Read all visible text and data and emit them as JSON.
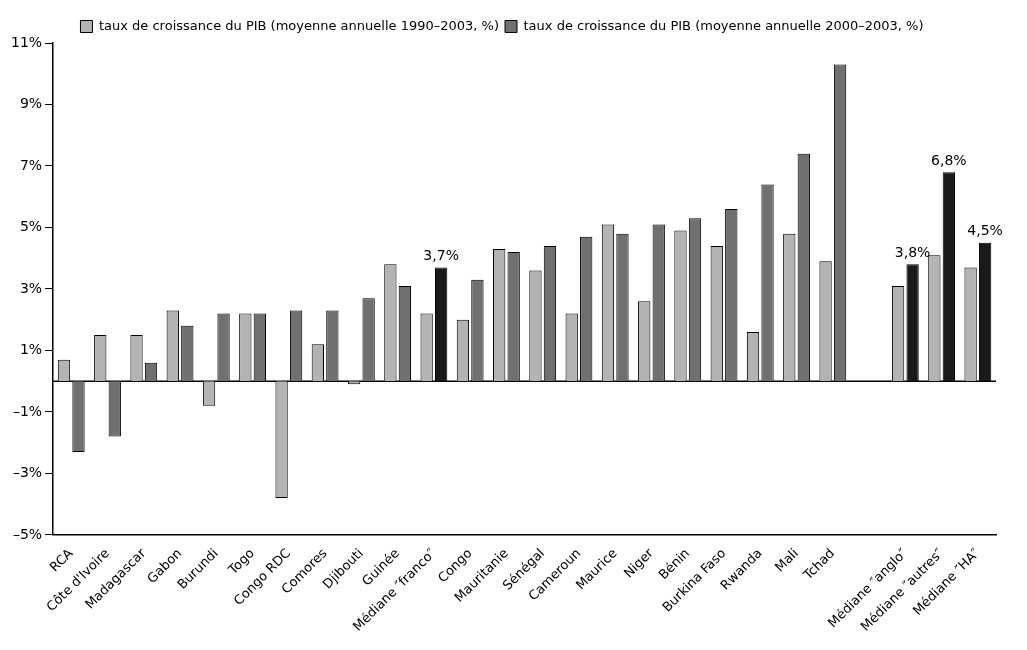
{
  "chart_data": {
    "type": "bar",
    "categories": [
      "RCA",
      "Côte d'Ivoire",
      "Madagascar",
      "Gabon",
      "Burundi",
      "Togo",
      "Congo RDC",
      "Comores",
      "Djibouti",
      "Guinée",
      "Médiane ″franco″",
      "Congo",
      "Mauritanie",
      "Sénégal",
      "Cameroun",
      "Maurice",
      "Niger",
      "Bénin",
      "Burkina Faso",
      "Rwanda",
      "Mali",
      "Tchad",
      null,
      "Médiane ″anglo″",
      "Médiane ″autres″",
      "Médiane ″HA″"
    ],
    "series": [
      {
        "name": "taux de croissance du PIB (moyenne annuelle 1990–2003, %)",
        "color": "#b3b3b3",
        "values": [
          0.7,
          1.5,
          1.5,
          2.3,
          -0.8,
          2.2,
          -3.8,
          1.2,
          -0.1,
          3.8,
          2.2,
          2.0,
          4.3,
          3.6,
          2.2,
          5.1,
          2.6,
          4.9,
          4.4,
          1.6,
          4.8,
          3.9,
          null,
          3.1,
          4.1,
          3.7
        ]
      },
      {
        "name": "taux de croissance du PIB (moyenne annuelle 2000–2003, %)",
        "color": "#707070",
        "colors": [
          "#707070",
          "#707070",
          "#707070",
          "#707070",
          "#707070",
          "#707070",
          "#707070",
          "#707070",
          "#707070",
          "#707070",
          "#1a1a1a",
          "#707070",
          "#707070",
          "#707070",
          "#707070",
          "#707070",
          "#707070",
          "#707070",
          "#707070",
          "#707070",
          "#707070",
          "#707070",
          "#707070",
          "#1a1a1a",
          "#1a1a1a",
          "#1a1a1a"
        ],
        "values": [
          -2.3,
          -1.8,
          0.6,
          1.8,
          2.2,
          2.2,
          2.3,
          2.3,
          2.7,
          3.1,
          3.7,
          3.3,
          4.2,
          4.4,
          4.7,
          4.8,
          5.1,
          5.3,
          5.6,
          6.4,
          7.4,
          10.3,
          null,
          3.8,
          6.8,
          4.5
        ],
        "value_labels": [
          null,
          null,
          null,
          null,
          null,
          null,
          null,
          null,
          null,
          null,
          "3,7%",
          null,
          null,
          null,
          null,
          null,
          null,
          null,
          null,
          null,
          null,
          null,
          null,
          "3,8%",
          "6,8%",
          "4,5%"
        ]
      }
    ],
    "ylim": [
      -5,
      11
    ],
    "yticks": [
      {
        "value": -5,
        "label": "–5%"
      },
      {
        "value": -3,
        "label": "–3%"
      },
      {
        "value": -1,
        "label": "–1%"
      },
      {
        "value": 1,
        "label": "1%"
      },
      {
        "value": 3,
        "label": "3%"
      },
      {
        "value": 5,
        "label": "5%"
      },
      {
        "value": 7,
        "label": "7%"
      },
      {
        "value": 9,
        "label": "9%"
      },
      {
        "value": 11,
        "label": "11%"
      }
    ],
    "ref_lines": [
      {
        "axis": "y",
        "value": 0,
        "color": "#000000"
      }
    ],
    "grid": false,
    "legend": "top"
  }
}
